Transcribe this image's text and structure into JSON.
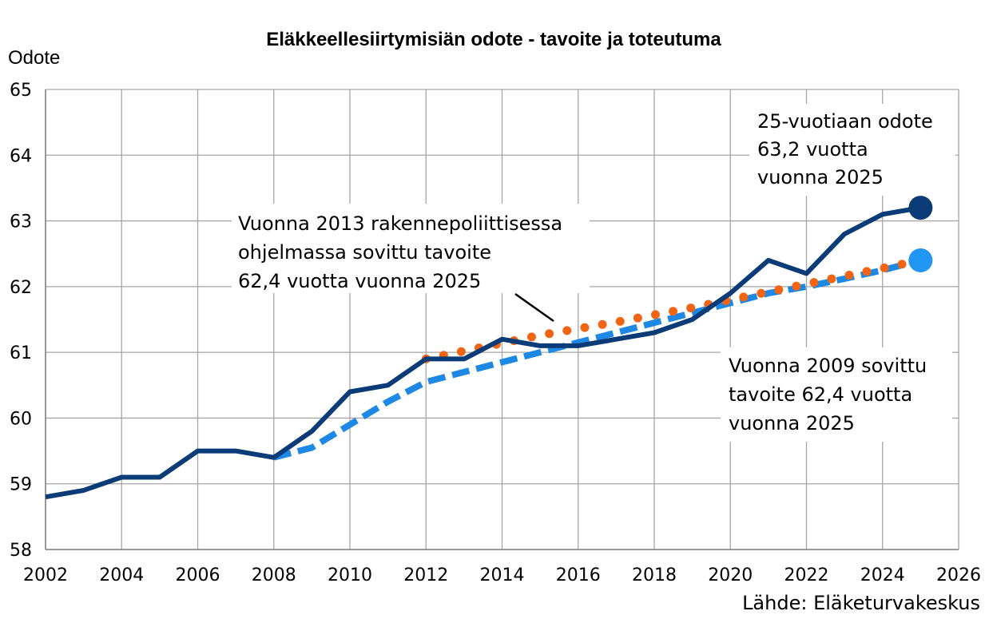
{
  "chart_data": {
    "type": "line",
    "title": "Eläkkeellesiirtymisiän odote - tavoite ja toteutuma",
    "ylabel": "Odote",
    "xlabel": "",
    "xlim": [
      2002,
      2026
    ],
    "ylim": [
      58,
      65
    ],
    "xticks": [
      "2002",
      "2004",
      "2006",
      "2008",
      "2010",
      "2012",
      "2014",
      "2016",
      "2018",
      "2020",
      "2022",
      "2024",
      "2026"
    ],
    "yticks": [
      "58",
      "59",
      "60",
      "61",
      "62",
      "63",
      "64",
      "65"
    ],
    "grid": true,
    "series": [
      {
        "style": "solid",
        "color": "#0b3c78",
        "x": [
          2002,
          2003,
          2004,
          2005,
          2006,
          2007,
          2008,
          2009,
          2010,
          2011,
          2012,
          2013,
          2014,
          2015,
          2016,
          2017,
          2018,
          2019,
          2020,
          2021,
          2022,
          2023,
          2024,
          2025
        ],
        "y": [
          58.8,
          58.9,
          59.1,
          59.1,
          59.5,
          59.5,
          59.4,
          59.8,
          60.4,
          60.5,
          60.9,
          60.9,
          61.2,
          61.1,
          61.1,
          61.2,
          61.3,
          61.5,
          61.9,
          62.4,
          62.2,
          62.8,
          63.1,
          63.2
        ]
      },
      {
        "style": "dashed",
        "color": "#1e88e5",
        "x": [
          2008,
          2009,
          2010,
          2011,
          2012,
          2013,
          2014,
          2015,
          2016,
          2017,
          2018,
          2019,
          2020,
          2021,
          2022,
          2023,
          2024,
          2025
        ],
        "y": [
          59.4,
          59.55,
          59.9,
          60.25,
          60.55,
          60.7,
          60.85,
          61.0,
          61.15,
          61.3,
          61.45,
          61.6,
          61.75,
          61.9,
          62.0,
          62.12,
          62.25,
          62.4
        ]
      },
      {
        "style": "dotted",
        "color": "#f06414",
        "x": [
          2012,
          2013,
          2014,
          2015,
          2016,
          2017,
          2018,
          2019,
          2020,
          2021,
          2022,
          2023,
          2024,
          2025
        ],
        "y": [
          60.9,
          61.02,
          61.14,
          61.26,
          61.36,
          61.46,
          61.57,
          61.68,
          61.8,
          61.92,
          62.04,
          62.16,
          62.28,
          62.4
        ]
      }
    ],
    "endpoints": [
      {
        "x": 2025,
        "y": 63.2,
        "color": "#0b3c78"
      },
      {
        "x": 2025,
        "y": 62.4,
        "color": "#2196f3"
      }
    ],
    "annotations": [
      {
        "id": "actual",
        "lines": [
          "25-vuotiaan odote",
          "63,2 vuotta",
          "vuonna 2025"
        ]
      },
      {
        "id": "target2013",
        "lines": [
          "Vuonna 2013 rakennepoliittisessa",
          "ohjelmassa sovittu tavoite",
          "62,4 vuotta vuonna 2025"
        ]
      },
      {
        "id": "target2009",
        "lines": [
          "Vuonna 2009 sovittu",
          "tavoite 62,4 vuotta",
          "vuonna 2025"
        ]
      }
    ],
    "source": "Lähde: Eläketurvakeskus"
  }
}
